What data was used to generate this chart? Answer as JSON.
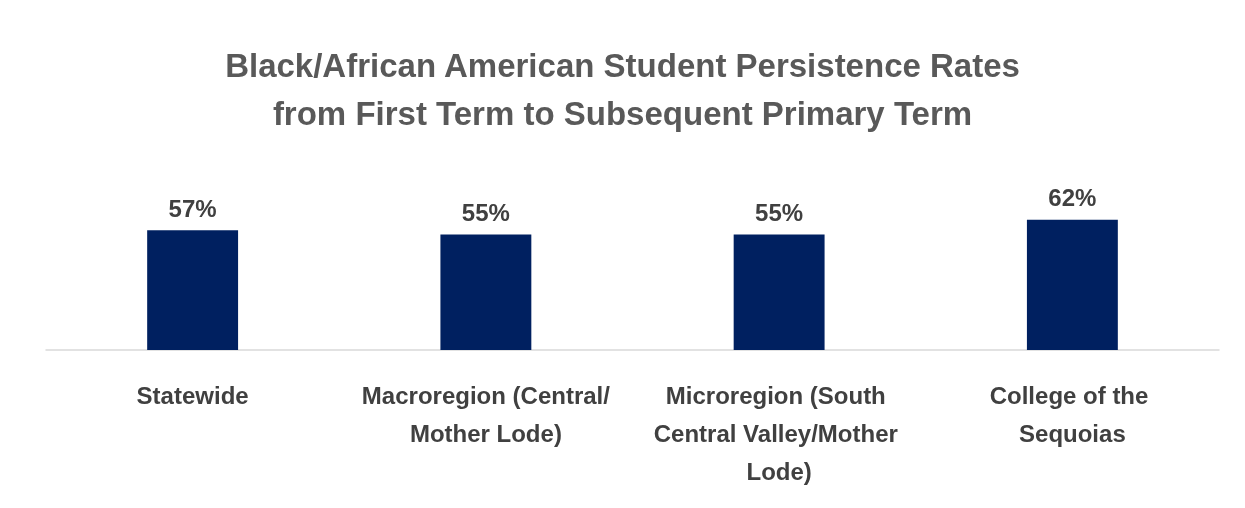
{
  "chart_data": {
    "type": "bar",
    "title": "Black/African American Student Persistence Rates\nfrom First Term to Subsequent Primary Term",
    "categories": [
      "Statewide",
      "Macroregion (Central/Mother Lode)",
      "Microregion (South Central Valley/Mother Lode)",
      "College of the Sequoias"
    ],
    "values": [
      57,
      55,
      55,
      62
    ],
    "value_labels": [
      "57%",
      "55%",
      "55%",
      "62%"
    ],
    "color": "#002060"
  }
}
